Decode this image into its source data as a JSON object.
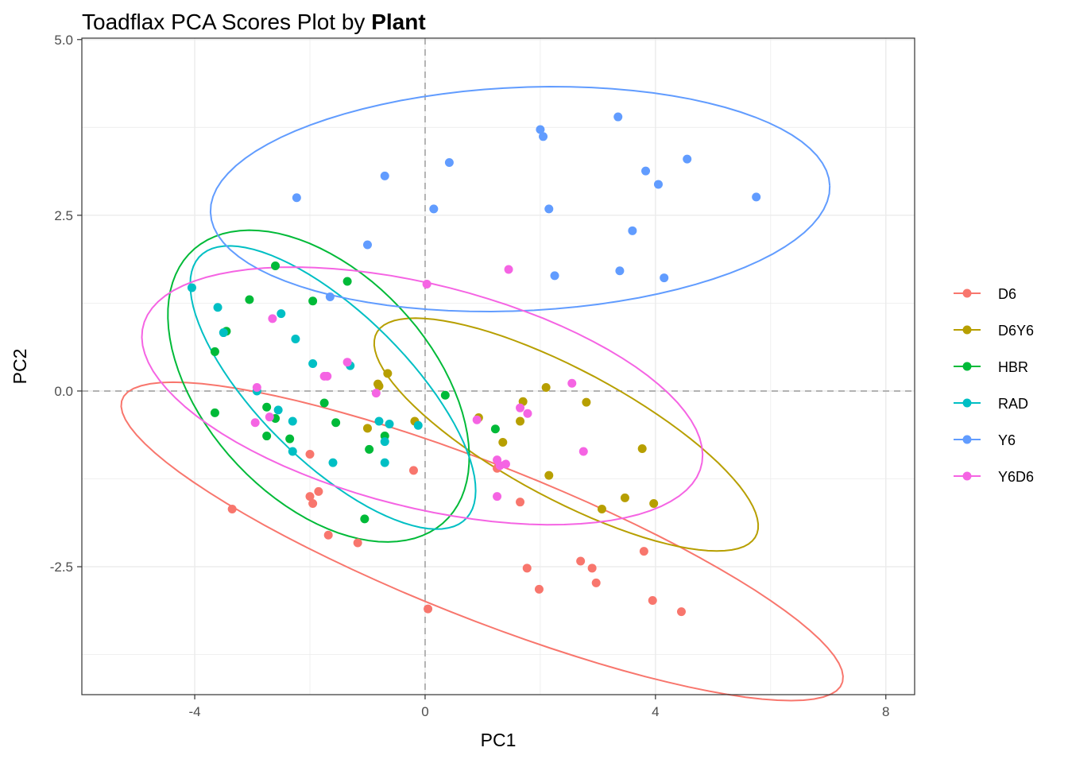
{
  "title": {
    "prefix": "Toadflax PCA Scores Plot by ",
    "emphasis": "Plant"
  },
  "chart_data": {
    "type": "scatter",
    "xlabel": "PC1",
    "ylabel": "PC2",
    "xlim": [
      -5.96,
      8.5
    ],
    "ylim": [
      -4.32,
      5.02
    ],
    "x_ticks": [
      -4,
      0,
      4,
      8
    ],
    "x_tick_labels": [
      "-4",
      "0",
      "4",
      "8"
    ],
    "y_ticks": [
      -2.5,
      0,
      2.5,
      5
    ],
    "y_tick_labels": [
      "-2.5",
      "0.0",
      "2.5",
      "5.0"
    ],
    "grid": true,
    "reference_lines": {
      "x": 0,
      "y": 0,
      "style": "dashed"
    },
    "legend_position": "right",
    "series": [
      {
        "name": "D6",
        "color": "#F8766D",
        "points": [
          [
            -3.35,
            -1.68
          ],
          [
            -2.0,
            -0.9
          ],
          [
            -1.85,
            -1.43
          ],
          [
            -2.0,
            -1.5
          ],
          [
            -1.95,
            -1.6
          ],
          [
            -1.68,
            -2.05
          ],
          [
            -1.17,
            -2.16
          ],
          [
            -0.2,
            -1.13
          ],
          [
            0.05,
            -3.1
          ],
          [
            1.25,
            -1.1
          ],
          [
            1.65,
            -1.58
          ],
          [
            1.77,
            -2.52
          ],
          [
            1.98,
            -2.82
          ],
          [
            2.7,
            -2.42
          ],
          [
            2.9,
            -2.52
          ],
          [
            2.97,
            -2.73
          ],
          [
            3.8,
            -2.28
          ],
          [
            3.95,
            -2.98
          ],
          [
            4.45,
            -3.14
          ]
        ]
      },
      {
        "name": "D6Y6",
        "color": "#B79F00",
        "points": [
          [
            -1.0,
            -0.53
          ],
          [
            -0.82,
            0.1
          ],
          [
            -0.8,
            0.07
          ],
          [
            -0.65,
            0.25
          ],
          [
            -0.18,
            -0.43
          ],
          [
            0.93,
            -0.38
          ],
          [
            1.35,
            -0.73
          ],
          [
            1.65,
            -0.43
          ],
          [
            1.7,
            -0.15
          ],
          [
            2.1,
            0.05
          ],
          [
            2.15,
            -1.2
          ],
          [
            2.8,
            -0.16
          ],
          [
            3.07,
            -1.68
          ],
          [
            3.47,
            -1.52
          ],
          [
            3.77,
            -0.82
          ],
          [
            3.97,
            -1.6
          ]
        ]
      },
      {
        "name": "HBR",
        "color": "#00BA38",
        "points": [
          [
            -3.05,
            1.3
          ],
          [
            -2.6,
            1.78
          ],
          [
            -3.45,
            0.85
          ],
          [
            -3.65,
            0.56
          ],
          [
            -2.75,
            -0.23
          ],
          [
            -2.6,
            -0.39
          ],
          [
            -3.65,
            -0.31
          ],
          [
            -2.75,
            -0.64
          ],
          [
            -2.35,
            -0.68
          ],
          [
            -1.95,
            1.28
          ],
          [
            -1.75,
            -0.17
          ],
          [
            -1.55,
            -0.45
          ],
          [
            -1.35,
            1.56
          ],
          [
            -0.97,
            -0.83
          ],
          [
            -0.7,
            -0.64
          ],
          [
            -1.05,
            -1.82
          ],
          [
            0.35,
            -0.06
          ],
          [
            1.22,
            -0.54
          ]
        ]
      },
      {
        "name": "RAD",
        "color": "#00BFC4",
        "points": [
          [
            -4.05,
            1.47
          ],
          [
            -3.6,
            1.19
          ],
          [
            -3.5,
            0.83
          ],
          [
            -2.5,
            1.1
          ],
          [
            -2.25,
            0.74
          ],
          [
            -1.95,
            0.39
          ],
          [
            -1.3,
            0.36
          ],
          [
            -2.3,
            -0.43
          ],
          [
            -2.55,
            -0.27
          ],
          [
            -2.3,
            -0.86
          ],
          [
            -1.6,
            -1.02
          ],
          [
            -2.92,
            0.0
          ],
          [
            -0.8,
            -0.43
          ],
          [
            -0.7,
            -0.72
          ],
          [
            -0.62,
            -0.47
          ],
          [
            -0.7,
            -1.02
          ],
          [
            -0.12,
            -0.49
          ]
        ]
      },
      {
        "name": "Y6",
        "color": "#619CFF",
        "points": [
          [
            -2.23,
            2.75
          ],
          [
            -0.7,
            3.06
          ],
          [
            -1.0,
            2.08
          ],
          [
            0.42,
            3.25
          ],
          [
            0.15,
            2.59
          ],
          [
            -1.65,
            1.34
          ],
          [
            2.0,
            3.72
          ],
          [
            2.05,
            3.62
          ],
          [
            2.15,
            2.59
          ],
          [
            2.25,
            1.64
          ],
          [
            3.35,
            3.9
          ],
          [
            3.83,
            3.13
          ],
          [
            3.6,
            2.28
          ],
          [
            3.38,
            1.71
          ],
          [
            4.05,
            2.94
          ],
          [
            4.55,
            3.3
          ],
          [
            4.15,
            1.61
          ],
          [
            5.75,
            2.76
          ]
        ]
      },
      {
        "name": "Y6D6",
        "color": "#F564E3",
        "points": [
          [
            -2.65,
            1.03
          ],
          [
            -2.7,
            -0.37
          ],
          [
            -2.92,
            0.05
          ],
          [
            -2.95,
            -0.45
          ],
          [
            -1.35,
            0.41
          ],
          [
            -1.7,
            0.21
          ],
          [
            -1.75,
            0.21
          ],
          [
            -0.85,
            -0.03
          ],
          [
            0.03,
            1.52
          ],
          [
            0.9,
            -0.41
          ],
          [
            1.25,
            -0.98
          ],
          [
            1.3,
            -1.06
          ],
          [
            1.4,
            -1.04
          ],
          [
            1.25,
            -1.5
          ],
          [
            1.45,
            1.73
          ],
          [
            1.65,
            -0.24
          ],
          [
            1.78,
            -0.32
          ],
          [
            2.55,
            0.11
          ],
          [
            2.75,
            -0.86
          ]
        ]
      }
    ],
    "ellipses": [
      {
        "series": "D6",
        "center": [
          0.99,
          -2.14
        ],
        "semi_axis_major": 6.57,
        "semi_axis_minor": 1.12,
        "angle_deg": -17.7
      },
      {
        "series": "D6Y6",
        "center": [
          2.45,
          -0.62
        ],
        "semi_axis_major": 3.6,
        "semi_axis_minor": 0.95,
        "angle_deg": -23.0
      },
      {
        "series": "HBR",
        "center": [
          -1.85,
          0.07
        ],
        "semi_axis_major": 2.95,
        "semi_axis_minor": 1.75,
        "angle_deg": -35.0
      },
      {
        "series": "RAD",
        "center": [
          -1.6,
          0.05
        ],
        "semi_axis_major": 2.98,
        "semi_axis_minor": 1.15,
        "angle_deg": -37.0
      },
      {
        "series": "Y6",
        "center": [
          1.65,
          2.73
        ],
        "semi_axis_major": 5.38,
        "semi_axis_minor": 1.59,
        "angle_deg": 2.0
      },
      {
        "series": "Y6D6",
        "center": [
          -0.05,
          -0.07
        ],
        "semi_axis_major": 4.95,
        "semi_axis_minor": 1.6,
        "angle_deg": -11.0
      }
    ]
  }
}
